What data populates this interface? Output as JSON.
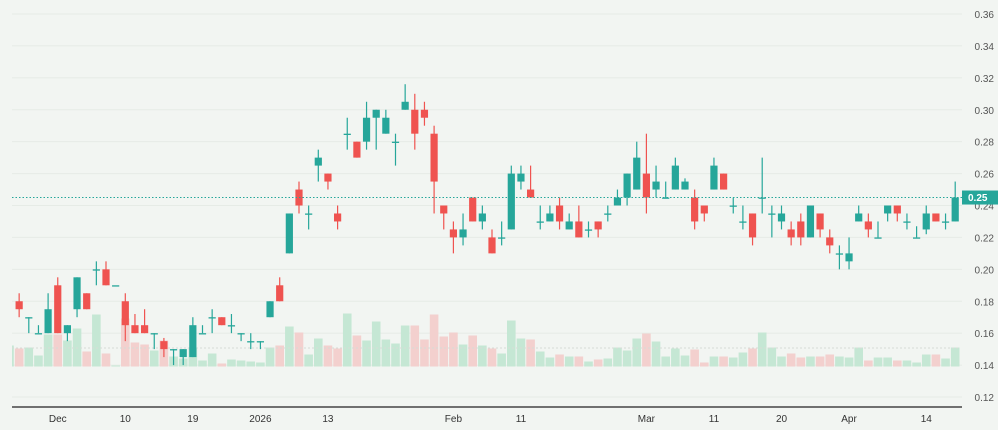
{
  "chart_data": {
    "type": "candlestick",
    "title": "",
    "xlabel": "",
    "ylabel": "",
    "ylim": [
      0.12,
      0.36
    ],
    "y_ticks": [
      "0.12",
      "0.14",
      "0.16",
      "0.18",
      "0.20",
      "0.22",
      "0.24",
      "0.26",
      "0.28",
      "0.30",
      "0.32",
      "0.34",
      "0.36"
    ],
    "grid": true,
    "colors": {
      "up": "#26a69a",
      "down": "#ef5350",
      "volume_up": "#c5e7d4",
      "volume_down": "#f3d0ce",
      "background": "#f2f5f2"
    },
    "last_price": 0.25,
    "last_price_label": "0.25",
    "x_ticks": [
      {
        "label": "Dec",
        "at_candle": 5
      },
      {
        "label": "10",
        "at_candle": 12
      },
      {
        "label": "19",
        "at_candle": 19
      },
      {
        "label": "2026",
        "at_candle": 26
      },
      {
        "label": "13",
        "at_candle": 33
      },
      {
        "label": "Feb",
        "at_candle": 46
      },
      {
        "label": "11",
        "at_candle": 53
      },
      {
        "label": "Mar",
        "at_candle": 66
      },
      {
        "label": "11",
        "at_candle": 73
      },
      {
        "label": "20",
        "at_candle": 80
      },
      {
        "label": "Apr",
        "at_candle": 87
      },
      {
        "label": "14",
        "at_candle": 95
      }
    ],
    "candle_fields": [
      "open",
      "high",
      "low",
      "close",
      "volume_relative"
    ],
    "candles": [
      [
        0.16,
        0.175,
        0.16,
        0.175,
        21
      ],
      [
        0.18,
        0.185,
        0.17,
        0.175,
        18
      ],
      [
        0.17,
        0.17,
        0.16,
        0.17,
        19
      ],
      [
        0.16,
        0.165,
        0.16,
        0.16,
        11
      ],
      [
        0.16,
        0.185,
        0.16,
        0.175,
        32
      ],
      [
        0.19,
        0.195,
        0.16,
        0.16,
        32
      ],
      [
        0.16,
        0.165,
        0.155,
        0.165,
        26
      ],
      [
        0.175,
        0.195,
        0.17,
        0.195,
        38
      ],
      [
        0.185,
        0.185,
        0.175,
        0.175,
        15
      ],
      [
        0.2,
        0.205,
        0.19,
        0.2,
        52
      ],
      [
        0.2,
        0.205,
        0.19,
        0.19,
        13
      ],
      [
        0.19,
        0.19,
        0.19,
        0.19,
        1
      ],
      [
        0.18,
        0.185,
        0.155,
        0.165,
        48
      ],
      [
        0.165,
        0.172,
        0.16,
        0.16,
        24
      ],
      [
        0.165,
        0.175,
        0.16,
        0.16,
        22
      ],
      [
        0.16,
        0.16,
        0.15,
        0.16,
        16
      ],
      [
        0.155,
        0.157,
        0.145,
        0.15,
        26
      ],
      [
        0.15,
        0.15,
        0.14,
        0.15,
        10
      ],
      [
        0.145,
        0.15,
        0.14,
        0.15,
        8
      ],
      [
        0.145,
        0.17,
        0.145,
        0.165,
        19
      ],
      [
        0.16,
        0.165,
        0.16,
        0.16,
        6
      ],
      [
        0.17,
        0.175,
        0.16,
        0.17,
        13
      ],
      [
        0.17,
        0.17,
        0.165,
        0.165,
        3
      ],
      [
        0.165,
        0.172,
        0.16,
        0.165,
        7
      ],
      [
        0.16,
        0.16,
        0.155,
        0.16,
        6
      ],
      [
        0.155,
        0.16,
        0.15,
        0.155,
        5
      ],
      [
        0.155,
        0.155,
        0.15,
        0.155,
        4
      ],
      [
        0.17,
        0.18,
        0.17,
        0.18,
        19
      ],
      [
        0.19,
        0.195,
        0.18,
        0.18,
        21
      ],
      [
        0.21,
        0.235,
        0.21,
        0.235,
        40
      ],
      [
        0.25,
        0.255,
        0.235,
        0.24,
        34
      ],
      [
        0.235,
        0.24,
        0.225,
        0.235,
        12
      ],
      [
        0.265,
        0.275,
        0.255,
        0.27,
        28
      ],
      [
        0.26,
        0.26,
        0.25,
        0.255,
        21
      ],
      [
        0.235,
        0.24,
        0.225,
        0.23,
        18
      ],
      [
        0.285,
        0.295,
        0.275,
        0.285,
        53
      ],
      [
        0.28,
        0.28,
        0.27,
        0.27,
        31
      ],
      [
        0.28,
        0.305,
        0.275,
        0.295,
        26
      ],
      [
        0.295,
        0.3,
        0.275,
        0.3,
        45
      ],
      [
        0.285,
        0.3,
        0.285,
        0.295,
        27
      ],
      [
        0.28,
        0.285,
        0.265,
        0.28,
        23
      ],
      [
        0.3,
        0.316,
        0.3,
        0.305,
        41
      ],
      [
        0.3,
        0.31,
        0.275,
        0.285,
        41
      ],
      [
        0.3,
        0.305,
        0.29,
        0.295,
        27
      ],
      [
        0.285,
        0.29,
        0.235,
        0.255,
        52
      ],
      [
        0.24,
        0.24,
        0.225,
        0.235,
        30
      ],
      [
        0.225,
        0.23,
        0.21,
        0.22,
        34
      ],
      [
        0.22,
        0.235,
        0.215,
        0.225,
        22
      ],
      [
        0.245,
        0.245,
        0.23,
        0.23,
        31
      ],
      [
        0.23,
        0.24,
        0.225,
        0.235,
        21
      ],
      [
        0.22,
        0.225,
        0.21,
        0.21,
        18
      ],
      [
        0.22,
        0.23,
        0.215,
        0.22,
        13
      ],
      [
        0.225,
        0.265,
        0.225,
        0.26,
        46
      ],
      [
        0.255,
        0.265,
        0.25,
        0.26,
        28
      ],
      [
        0.25,
        0.265,
        0.245,
        0.245,
        27
      ],
      [
        0.23,
        0.24,
        0.225,
        0.23,
        15
      ],
      [
        0.23,
        0.24,
        0.23,
        0.235,
        9
      ],
      [
        0.24,
        0.245,
        0.225,
        0.23,
        12
      ],
      [
        0.225,
        0.235,
        0.225,
        0.23,
        10
      ],
      [
        0.23,
        0.24,
        0.22,
        0.22,
        10
      ],
      [
        0.225,
        0.23,
        0.22,
        0.225,
        5
      ],
      [
        0.23,
        0.23,
        0.22,
        0.225,
        7
      ],
      [
        0.235,
        0.24,
        0.23,
        0.235,
        8
      ],
      [
        0.24,
        0.25,
        0.24,
        0.245,
        19
      ],
      [
        0.245,
        0.26,
        0.24,
        0.26,
        16
      ],
      [
        0.25,
        0.28,
        0.25,
        0.27,
        28
      ],
      [
        0.26,
        0.285,
        0.235,
        0.245,
        33
      ],
      [
        0.25,
        0.265,
        0.245,
        0.255,
        25
      ],
      [
        0.245,
        0.255,
        0.245,
        0.245,
        10
      ],
      [
        0.25,
        0.27,
        0.25,
        0.265,
        18
      ],
      [
        0.25,
        0.257,
        0.25,
        0.255,
        11
      ],
      [
        0.245,
        0.25,
        0.225,
        0.23,
        17
      ],
      [
        0.24,
        0.24,
        0.23,
        0.235,
        4
      ],
      [
        0.25,
        0.27,
        0.25,
        0.265,
        10
      ],
      [
        0.26,
        0.26,
        0.25,
        0.25,
        10
      ],
      [
        0.24,
        0.245,
        0.235,
        0.24,
        9
      ],
      [
        0.23,
        0.24,
        0.225,
        0.23,
        14
      ],
      [
        0.235,
        0.235,
        0.215,
        0.22,
        18
      ],
      [
        0.245,
        0.27,
        0.235,
        0.245,
        34
      ],
      [
        0.235,
        0.24,
        0.22,
        0.235,
        19
      ],
      [
        0.23,
        0.24,
        0.225,
        0.235,
        10
      ],
      [
        0.225,
        0.23,
        0.215,
        0.22,
        13
      ],
      [
        0.23,
        0.235,
        0.215,
        0.22,
        9
      ],
      [
        0.22,
        0.24,
        0.22,
        0.24,
        10
      ],
      [
        0.235,
        0.235,
        0.22,
        0.225,
        10
      ],
      [
        0.22,
        0.225,
        0.21,
        0.215,
        12
      ],
      [
        0.21,
        0.215,
        0.2,
        0.21,
        10
      ],
      [
        0.205,
        0.22,
        0.2,
        0.21,
        9
      ],
      [
        0.23,
        0.24,
        0.23,
        0.235,
        19
      ],
      [
        0.23,
        0.235,
        0.22,
        0.225,
        6
      ],
      [
        0.22,
        0.23,
        0.22,
        0.22,
        9
      ],
      [
        0.235,
        0.24,
        0.23,
        0.24,
        9
      ],
      [
        0.24,
        0.24,
        0.23,
        0.235,
        6
      ],
      [
        0.23,
        0.235,
        0.225,
        0.23,
        6
      ],
      [
        0.22,
        0.227,
        0.22,
        0.22,
        4
      ],
      [
        0.225,
        0.24,
        0.222,
        0.235,
        12
      ],
      [
        0.235,
        0.235,
        0.23,
        0.23,
        12
      ],
      [
        0.23,
        0.235,
        0.225,
        0.23,
        8
      ],
      [
        0.23,
        0.255,
        0.23,
        0.245,
        19
      ]
    ]
  }
}
